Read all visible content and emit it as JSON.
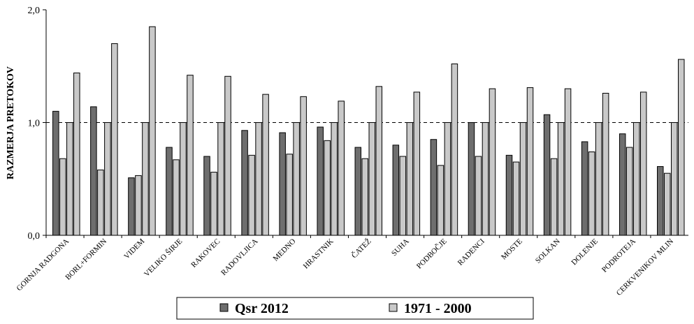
{
  "chart_data": {
    "type": "bar",
    "ylabel": "RAZMERJA PRETOKOV",
    "ylim": [
      0,
      2
    ],
    "y_ticks": [
      "0,0",
      "1,0",
      "2,0"
    ],
    "reference_line": 1.0,
    "grid": false,
    "legend_position": "bottom",
    "categories": [
      "GORNJA RADGONA",
      "BORL+FORMIN",
      "VIDEM",
      "VELIKO ŠIRJE",
      "RAKOVEC",
      "RADOVLJICA",
      "MEDNO",
      "HRASTNIK",
      "ČATEŽ",
      "SUHA",
      "PODBOČJE",
      "RADENCI",
      "MOSTE",
      "SOLKAN",
      "DOLENJE",
      "PODROTEJA",
      "CERKVENIKOV MLIN"
    ],
    "series": [
      {
        "name": "Qsr 2012",
        "color": "#6e6e6e",
        "values": [
          1.1,
          1.14,
          0.51,
          0.78,
          0.7,
          0.93,
          0.91,
          0.96,
          0.78,
          0.8,
          0.85,
          1.0,
          0.71,
          1.07,
          0.83,
          0.9,
          0.61
        ]
      },
      {
        "name": "",
        "color": "#c9c9c9",
        "values": [
          0.68,
          0.58,
          0.53,
          0.67,
          0.56,
          0.71,
          0.72,
          0.84,
          0.68,
          0.7,
          0.62,
          0.7,
          0.65,
          0.68,
          0.74,
          0.78,
          0.55
        ]
      },
      {
        "name": "",
        "color": "#c9c9c9",
        "values": [
          1.0,
          1.0,
          1.0,
          1.0,
          1.0,
          1.0,
          1.0,
          1.0,
          1.0,
          1.0,
          1.0,
          1.0,
          1.0,
          1.0,
          1.0,
          1.0,
          1.0
        ]
      },
      {
        "name": "1971 - 2000",
        "color": "#c9c9c9",
        "values": [
          1.44,
          1.7,
          1.85,
          1.42,
          1.41,
          1.25,
          1.23,
          1.19,
          1.32,
          1.27,
          1.52,
          1.3,
          1.31,
          1.3,
          1.26,
          1.27,
          1.56
        ]
      }
    ]
  }
}
